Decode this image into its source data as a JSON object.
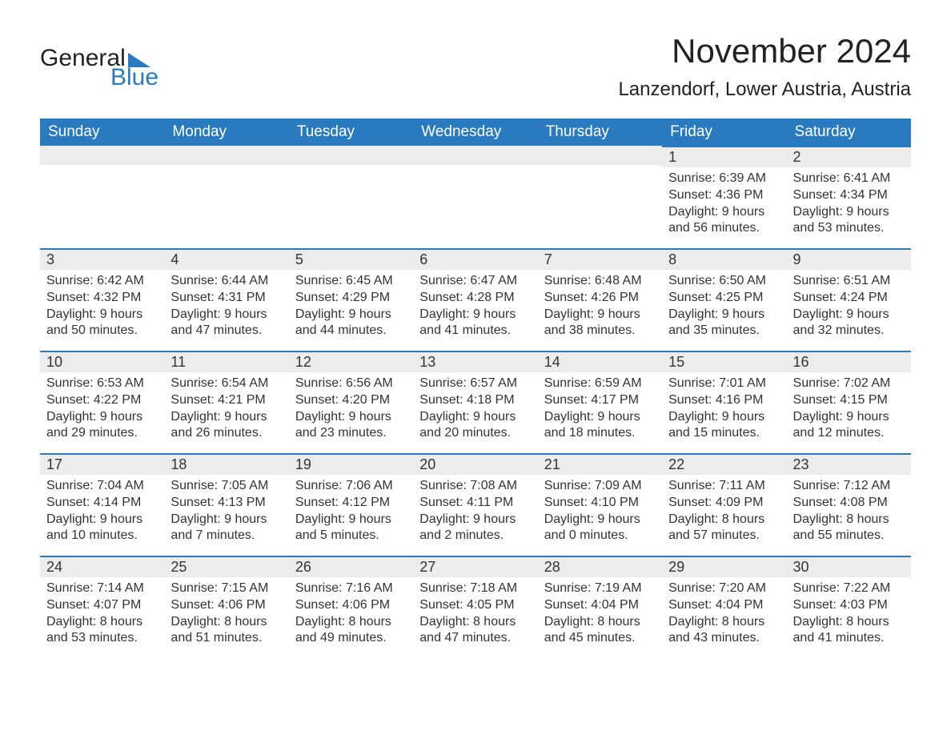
{
  "logo": {
    "text1": "General",
    "text2": "Blue",
    "flag_color": "#2a7abf"
  },
  "title": "November 2024",
  "location": "Lanzendorf, Lower Austria, Austria",
  "colors": {
    "header_bg": "#2a7abf",
    "header_text": "#ffffff",
    "day_row_bg": "#ececec",
    "day_row_border": "#2a7abf",
    "text": "#333333",
    "background": "#ffffff"
  },
  "typography": {
    "title_fontsize": 42,
    "location_fontsize": 24,
    "header_fontsize": 19,
    "daynum_fontsize": 18,
    "details_fontsize": 16
  },
  "layout": {
    "columns": 7,
    "rows": 5
  },
  "weekdays": [
    "Sunday",
    "Monday",
    "Tuesday",
    "Wednesday",
    "Thursday",
    "Friday",
    "Saturday"
  ],
  "weeks": [
    [
      null,
      null,
      null,
      null,
      null,
      {
        "day": "1",
        "sunrise": "Sunrise: 6:39 AM",
        "sunset": "Sunset: 4:36 PM",
        "daylight1": "Daylight: 9 hours",
        "daylight2": "and 56 minutes."
      },
      {
        "day": "2",
        "sunrise": "Sunrise: 6:41 AM",
        "sunset": "Sunset: 4:34 PM",
        "daylight1": "Daylight: 9 hours",
        "daylight2": "and 53 minutes."
      }
    ],
    [
      {
        "day": "3",
        "sunrise": "Sunrise: 6:42 AM",
        "sunset": "Sunset: 4:32 PM",
        "daylight1": "Daylight: 9 hours",
        "daylight2": "and 50 minutes."
      },
      {
        "day": "4",
        "sunrise": "Sunrise: 6:44 AM",
        "sunset": "Sunset: 4:31 PM",
        "daylight1": "Daylight: 9 hours",
        "daylight2": "and 47 minutes."
      },
      {
        "day": "5",
        "sunrise": "Sunrise: 6:45 AM",
        "sunset": "Sunset: 4:29 PM",
        "daylight1": "Daylight: 9 hours",
        "daylight2": "and 44 minutes."
      },
      {
        "day": "6",
        "sunrise": "Sunrise: 6:47 AM",
        "sunset": "Sunset: 4:28 PM",
        "daylight1": "Daylight: 9 hours",
        "daylight2": "and 41 minutes."
      },
      {
        "day": "7",
        "sunrise": "Sunrise: 6:48 AM",
        "sunset": "Sunset: 4:26 PM",
        "daylight1": "Daylight: 9 hours",
        "daylight2": "and 38 minutes."
      },
      {
        "day": "8",
        "sunrise": "Sunrise: 6:50 AM",
        "sunset": "Sunset: 4:25 PM",
        "daylight1": "Daylight: 9 hours",
        "daylight2": "and 35 minutes."
      },
      {
        "day": "9",
        "sunrise": "Sunrise: 6:51 AM",
        "sunset": "Sunset: 4:24 PM",
        "daylight1": "Daylight: 9 hours",
        "daylight2": "and 32 minutes."
      }
    ],
    [
      {
        "day": "10",
        "sunrise": "Sunrise: 6:53 AM",
        "sunset": "Sunset: 4:22 PM",
        "daylight1": "Daylight: 9 hours",
        "daylight2": "and 29 minutes."
      },
      {
        "day": "11",
        "sunrise": "Sunrise: 6:54 AM",
        "sunset": "Sunset: 4:21 PM",
        "daylight1": "Daylight: 9 hours",
        "daylight2": "and 26 minutes."
      },
      {
        "day": "12",
        "sunrise": "Sunrise: 6:56 AM",
        "sunset": "Sunset: 4:20 PM",
        "daylight1": "Daylight: 9 hours",
        "daylight2": "and 23 minutes."
      },
      {
        "day": "13",
        "sunrise": "Sunrise: 6:57 AM",
        "sunset": "Sunset: 4:18 PM",
        "daylight1": "Daylight: 9 hours",
        "daylight2": "and 20 minutes."
      },
      {
        "day": "14",
        "sunrise": "Sunrise: 6:59 AM",
        "sunset": "Sunset: 4:17 PM",
        "daylight1": "Daylight: 9 hours",
        "daylight2": "and 18 minutes."
      },
      {
        "day": "15",
        "sunrise": "Sunrise: 7:01 AM",
        "sunset": "Sunset: 4:16 PM",
        "daylight1": "Daylight: 9 hours",
        "daylight2": "and 15 minutes."
      },
      {
        "day": "16",
        "sunrise": "Sunrise: 7:02 AM",
        "sunset": "Sunset: 4:15 PM",
        "daylight1": "Daylight: 9 hours",
        "daylight2": "and 12 minutes."
      }
    ],
    [
      {
        "day": "17",
        "sunrise": "Sunrise: 7:04 AM",
        "sunset": "Sunset: 4:14 PM",
        "daylight1": "Daylight: 9 hours",
        "daylight2": "and 10 minutes."
      },
      {
        "day": "18",
        "sunrise": "Sunrise: 7:05 AM",
        "sunset": "Sunset: 4:13 PM",
        "daylight1": "Daylight: 9 hours",
        "daylight2": "and 7 minutes."
      },
      {
        "day": "19",
        "sunrise": "Sunrise: 7:06 AM",
        "sunset": "Sunset: 4:12 PM",
        "daylight1": "Daylight: 9 hours",
        "daylight2": "and 5 minutes."
      },
      {
        "day": "20",
        "sunrise": "Sunrise: 7:08 AM",
        "sunset": "Sunset: 4:11 PM",
        "daylight1": "Daylight: 9 hours",
        "daylight2": "and 2 minutes."
      },
      {
        "day": "21",
        "sunrise": "Sunrise: 7:09 AM",
        "sunset": "Sunset: 4:10 PM",
        "daylight1": "Daylight: 9 hours",
        "daylight2": "and 0 minutes."
      },
      {
        "day": "22",
        "sunrise": "Sunrise: 7:11 AM",
        "sunset": "Sunset: 4:09 PM",
        "daylight1": "Daylight: 8 hours",
        "daylight2": "and 57 minutes."
      },
      {
        "day": "23",
        "sunrise": "Sunrise: 7:12 AM",
        "sunset": "Sunset: 4:08 PM",
        "daylight1": "Daylight: 8 hours",
        "daylight2": "and 55 minutes."
      }
    ],
    [
      {
        "day": "24",
        "sunrise": "Sunrise: 7:14 AM",
        "sunset": "Sunset: 4:07 PM",
        "daylight1": "Daylight: 8 hours",
        "daylight2": "and 53 minutes."
      },
      {
        "day": "25",
        "sunrise": "Sunrise: 7:15 AM",
        "sunset": "Sunset: 4:06 PM",
        "daylight1": "Daylight: 8 hours",
        "daylight2": "and 51 minutes."
      },
      {
        "day": "26",
        "sunrise": "Sunrise: 7:16 AM",
        "sunset": "Sunset: 4:06 PM",
        "daylight1": "Daylight: 8 hours",
        "daylight2": "and 49 minutes."
      },
      {
        "day": "27",
        "sunrise": "Sunrise: 7:18 AM",
        "sunset": "Sunset: 4:05 PM",
        "daylight1": "Daylight: 8 hours",
        "daylight2": "and 47 minutes."
      },
      {
        "day": "28",
        "sunrise": "Sunrise: 7:19 AM",
        "sunset": "Sunset: 4:04 PM",
        "daylight1": "Daylight: 8 hours",
        "daylight2": "and 45 minutes."
      },
      {
        "day": "29",
        "sunrise": "Sunrise: 7:20 AM",
        "sunset": "Sunset: 4:04 PM",
        "daylight1": "Daylight: 8 hours",
        "daylight2": "and 43 minutes."
      },
      {
        "day": "30",
        "sunrise": "Sunrise: 7:22 AM",
        "sunset": "Sunset: 4:03 PM",
        "daylight1": "Daylight: 8 hours",
        "daylight2": "and 41 minutes."
      }
    ]
  ]
}
